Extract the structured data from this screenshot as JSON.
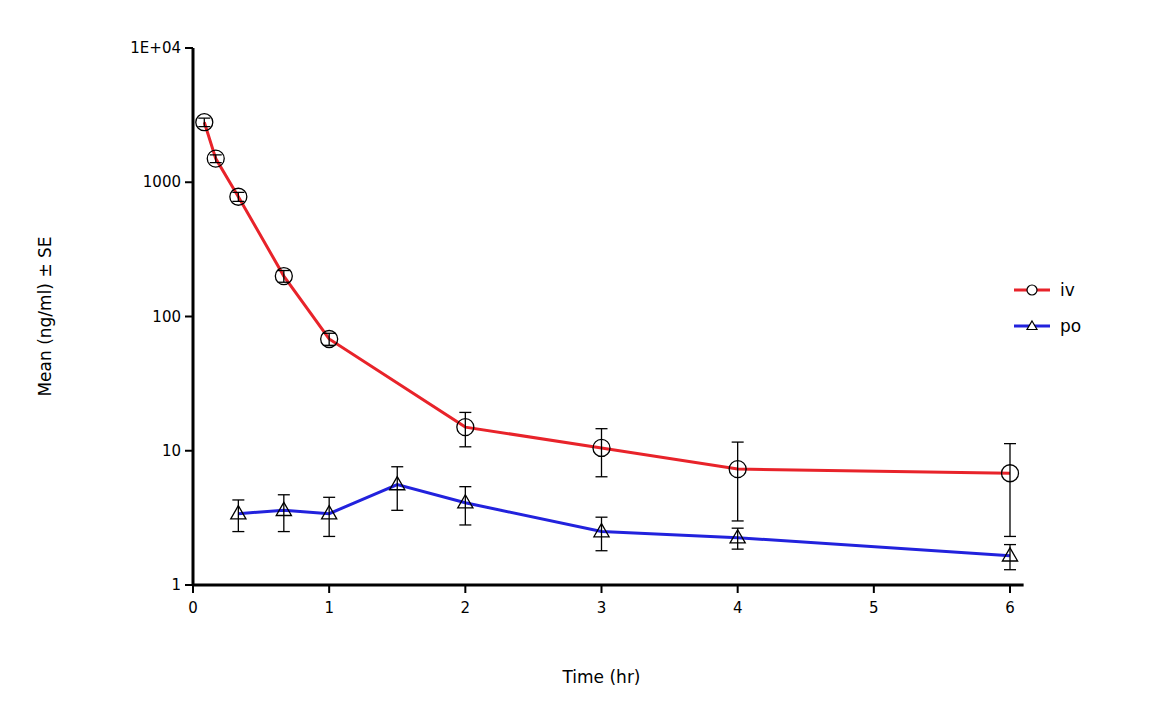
{
  "chart_data": {
    "type": "line",
    "x_label": "Time (hr)",
    "y_label": "Mean (ng/ml) ± SE",
    "log": "y",
    "legend": "right",
    "xlim": [
      0,
      6.1
    ],
    "xticks": [
      0,
      1,
      2,
      3,
      4,
      5,
      6
    ],
    "ylim": [
      1,
      10000
    ],
    "yticks": [
      1,
      10,
      100,
      1000,
      {
        "value": 10000,
        "label": "1E+04"
      }
    ],
    "series": [
      {
        "name": "iv",
        "color": "#e8232a",
        "marker": "circle",
        "x": [
          0.083,
          0.167,
          0.333,
          0.667,
          1,
          2,
          3,
          4,
          6
        ],
        "values": [
          2800,
          1500,
          780,
          200,
          68,
          15,
          10.5,
          7.3,
          6.8
        ],
        "errors": [
          200,
          100,
          60,
          20,
          7,
          4.3,
          4.1,
          4.3,
          4.5
        ]
      },
      {
        "name": "po",
        "color": "#2222dd",
        "marker": "triangle",
        "x": [
          0.333,
          0.667,
          1,
          1.5,
          2,
          3,
          4,
          6
        ],
        "values": [
          3.4,
          3.6,
          3.4,
          5.6,
          4.1,
          2.5,
          2.25,
          1.65
        ],
        "errors": [
          0.9,
          1.1,
          1.1,
          2.0,
          1.3,
          0.7,
          0.4,
          0.35
        ]
      }
    ]
  }
}
